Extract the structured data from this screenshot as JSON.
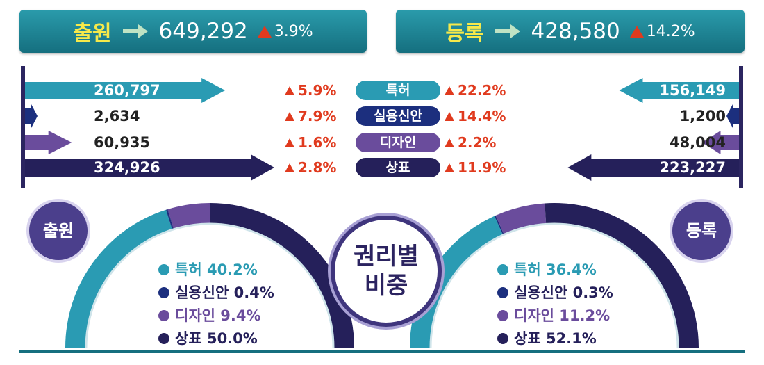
{
  "header": {
    "left": {
      "label": "출원",
      "total": "649,292",
      "change": "3.9%"
    },
    "right": {
      "label": "등록",
      "total": "428,580",
      "change": "14.2%"
    }
  },
  "colors": {
    "patent": "#2a9bb3",
    "utility": "#1c2f7e",
    "design": "#6a4c9c",
    "trademark": "#25205a",
    "up": "#e03a1e"
  },
  "center_label": [
    "권리별",
    "비중"
  ],
  "chart_data": [
    {
      "type": "bar",
      "title": "",
      "categories": [
        "특허",
        "실용신안",
        "디자인",
        "상표"
      ],
      "series": [
        {
          "name": "출원",
          "values": [
            260797,
            2634,
            60935,
            324926
          ],
          "labels": [
            "260,797",
            "2,634",
            "60,935",
            "324,926"
          ],
          "changes": [
            "5.9%",
            "7.9%",
            "1.6%",
            "2.8%"
          ]
        },
        {
          "name": "등록",
          "values": [
            156149,
            1200,
            48004,
            223227
          ],
          "labels": [
            "156,149",
            "1,200",
            "48,004",
            "223,227"
          ],
          "changes": [
            "22.2%",
            "14.4%",
            "2.2%",
            "11.9%"
          ]
        }
      ]
    },
    {
      "type": "pie",
      "title": "출원",
      "categories": [
        "특허",
        "실용신안",
        "디자인",
        "상표"
      ],
      "values": [
        40.2,
        0.4,
        9.4,
        50.0
      ],
      "labels": [
        "40.2%",
        "0.4%",
        "9.4%",
        "50.0%"
      ]
    },
    {
      "type": "pie",
      "title": "등록",
      "categories": [
        "특허",
        "실용신안",
        "디자인",
        "상표"
      ],
      "values": [
        36.4,
        0.3,
        11.2,
        52.1
      ],
      "labels": [
        "36.4%",
        "0.3%",
        "11.2%",
        "52.1%"
      ]
    }
  ]
}
